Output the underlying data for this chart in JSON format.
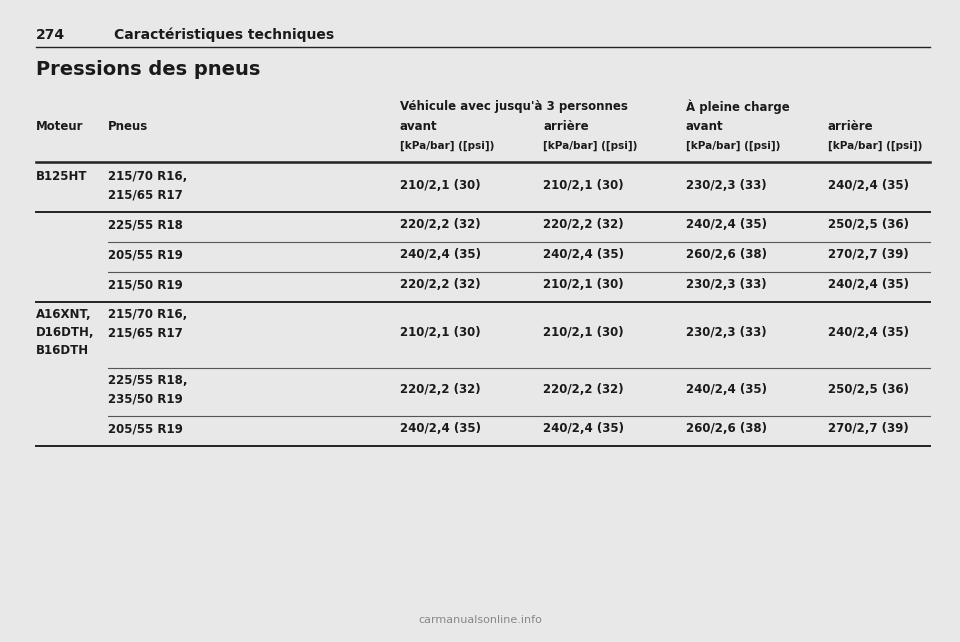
{
  "bg_color": "#e8e8e8",
  "page_num": "274",
  "section_title": "Caractéristiques techniques",
  "table_title": "Pressions des pneus",
  "col_header_row1_left": "Véhicule avec jusqu'à 3 personnes",
  "col_header_row1_right": "À pleine charge",
  "col_header_row2": [
    "avant",
    "arrière",
    "avant",
    "arrière"
  ],
  "col_header_row3": [
    "[kPa/bar] ([psi])",
    "[kPa/bar] ([psi])",
    "[kPa/bar] ([psi])",
    "[kPa/bar] ([psi])"
  ],
  "font_color": "#1a1a1a",
  "line_color": "#555555",
  "header_line_color": "#222222",
  "watermark": "carmanualsonline.info",
  "rows": [
    {
      "motor": "B125HT",
      "motor_lines": [
        "B125HT"
      ],
      "tire_lines": [
        "215/70 R16,",
        "215/65 R17"
      ],
      "v1": "210/2,1 (30)",
      "v2": "210/2,1 (30)",
      "v3": "230/2,3 (33)",
      "v4": "240/2,4 (35)",
      "separator_full": true
    },
    {
      "motor": "",
      "motor_lines": [],
      "tire_lines": [
        "225/55 R18"
      ],
      "v1": "220/2,2 (32)",
      "v2": "220/2,2 (32)",
      "v3": "240/2,4 (35)",
      "v4": "250/2,5 (36)",
      "separator_full": false
    },
    {
      "motor": "",
      "motor_lines": [],
      "tire_lines": [
        "205/55 R19"
      ],
      "v1": "240/2,4 (35)",
      "v2": "240/2,4 (35)",
      "v3": "260/2,6 (38)",
      "v4": "270/2,7 (39)",
      "separator_full": false
    },
    {
      "motor": "",
      "motor_lines": [],
      "tire_lines": [
        "215/50 R19"
      ],
      "v1": "220/2,2 (32)",
      "v2": "210/2,1 (30)",
      "v3": "230/2,3 (33)",
      "v4": "240/2,4 (35)",
      "separator_full": true
    },
    {
      "motor": "A16XNT,\nD16DTH,\nB16DTH",
      "motor_lines": [
        "A16XNT,",
        "D16DTH,",
        "B16DTH"
      ],
      "tire_lines": [
        "215/70 R16,",
        "215/65 R17"
      ],
      "v1": "210/2,1 (30)",
      "v2": "210/2,1 (30)",
      "v3": "230/2,3 (33)",
      "v4": "240/2,4 (35)",
      "separator_full": false
    },
    {
      "motor": "",
      "motor_lines": [],
      "tire_lines": [
        "225/55 R18,",
        "235/50 R19"
      ],
      "v1": "220/2,2 (32)",
      "v2": "220/2,2 (32)",
      "v3": "240/2,4 (35)",
      "v4": "250/2,5 (36)",
      "separator_full": false
    },
    {
      "motor": "",
      "motor_lines": [],
      "tire_lines": [
        "205/55 R19"
      ],
      "v1": "240/2,4 (35)",
      "v2": "240/2,4 (35)",
      "v3": "260/2,6 (38)",
      "v4": "270/2,7 (39)",
      "separator_full": true
    }
  ]
}
